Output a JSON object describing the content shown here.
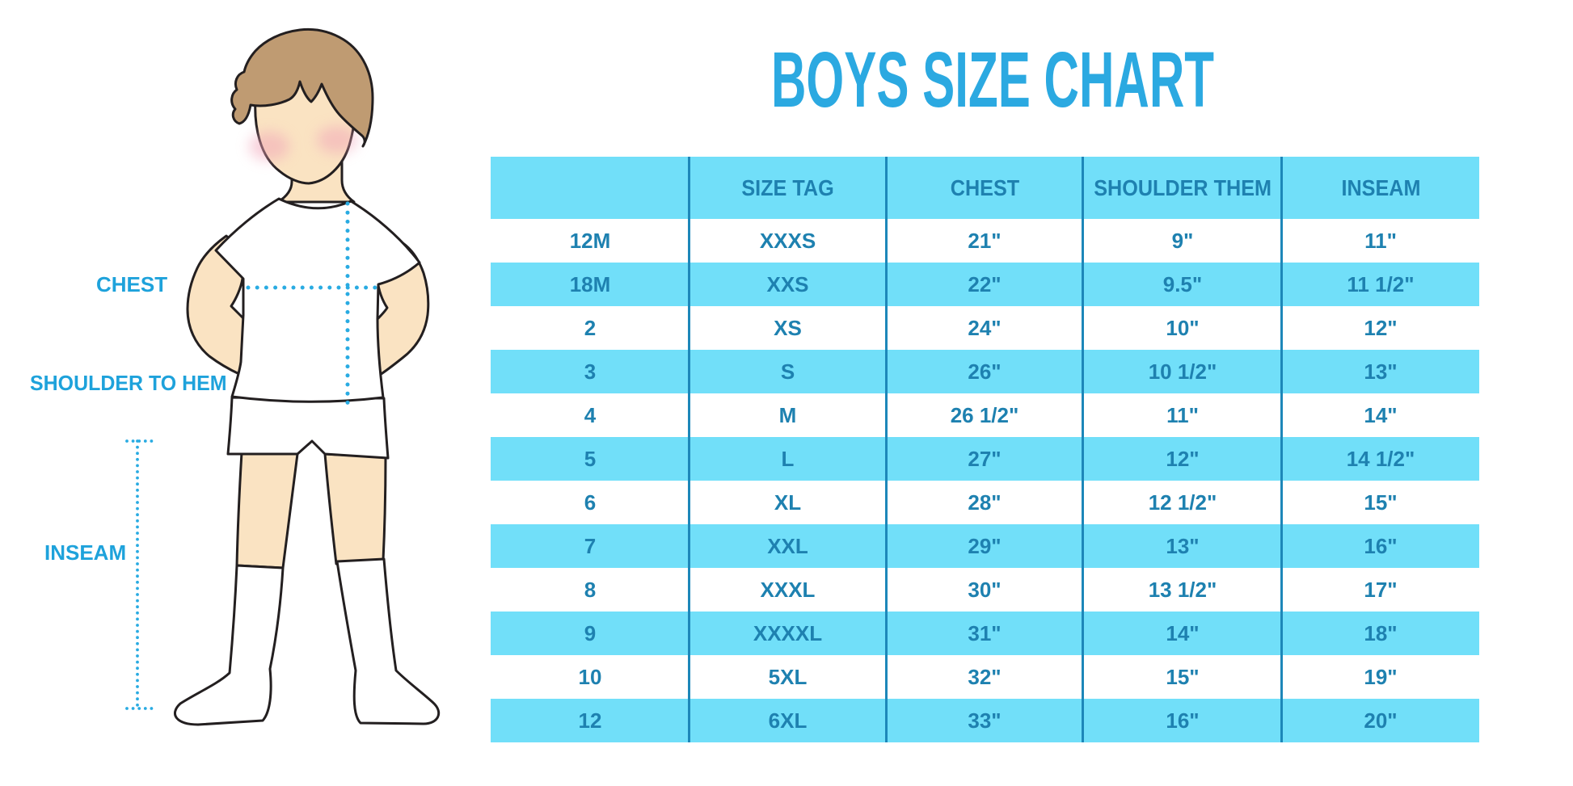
{
  "title": {
    "text": "BOYS SIZE CHART"
  },
  "figure": {
    "labels": {
      "chest": "CHEST",
      "shoulder_to_hem": "SHOULDER TO HEM",
      "inseam": "INSEAM"
    }
  },
  "chart_data": {
    "type": "table",
    "title": "BOYS SIZE CHART",
    "columns": [
      "",
      "SIZE TAG",
      "CHEST",
      "SHOULDER THEM",
      "INSEAM"
    ],
    "rows": [
      [
        "12M",
        "XXXS",
        "21\"",
        "9\"",
        "11\""
      ],
      [
        "18M",
        "XXS",
        "22\"",
        "9.5\"",
        "11 1/2\""
      ],
      [
        "2",
        "XS",
        "24\"",
        "10\"",
        "12\""
      ],
      [
        "3",
        "S",
        "26\"",
        "10 1/2\"",
        "13\""
      ],
      [
        "4",
        "M",
        "26 1/2\"",
        "11\"",
        "14\""
      ],
      [
        "5",
        "L",
        "27\"",
        "12\"",
        "14 1/2\""
      ],
      [
        "6",
        "XL",
        "28\"",
        "12 1/2\"",
        "15\""
      ],
      [
        "7",
        "XXL",
        "29\"",
        "13\"",
        "16\""
      ],
      [
        "8",
        "XXXL",
        "30\"",
        "13 1/2\"",
        "17\""
      ],
      [
        "9",
        "XXXXL",
        "31\"",
        "14\"",
        "18\""
      ],
      [
        "10",
        "5XL",
        "32\"",
        "15\"",
        "19\""
      ],
      [
        "12",
        "6XL",
        "33\"",
        "16\"",
        "20\""
      ]
    ],
    "layout_hints": {
      "stripes": "header cyan, data rows alternate white/cyan starting with white",
      "grid": "4 vertical dividers, no horizontal lines"
    }
  },
  "colors": {
    "title": "#2BA9E1",
    "label": "#1EA2DB",
    "dot": "#29ABE2",
    "cyan": "#71DFF9",
    "cell_text": "#1E81B0",
    "divider": "#1D87B9",
    "skin": "#FAE3C2",
    "hair": "#BF9B72",
    "blush": "#F1A3B8",
    "outline": "#231F20",
    "garment": "#FFFFFF"
  }
}
